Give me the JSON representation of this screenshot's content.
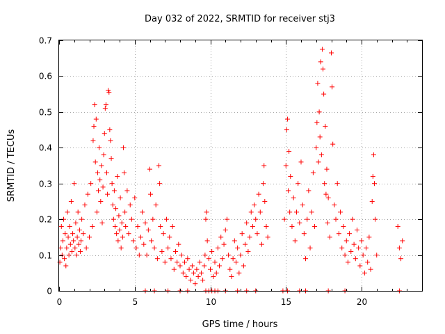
{
  "chart_data": {
    "type": "scatter",
    "title": "Day 032 of 2022, SRMTID for receiver stj3",
    "xlabel": "GPS time / hours",
    "ylabel": "SRMTID / TECUs",
    "xlim": [
      0,
      24
    ],
    "ylim": [
      0,
      0.7
    ],
    "x_ticks": [
      0,
      5,
      10,
      15,
      20
    ],
    "x_tick_labels": [
      "0",
      "5",
      "10",
      "15",
      "20"
    ],
    "y_ticks": [
      0,
      0.1,
      0.2,
      0.3,
      0.4,
      0.5,
      0.6,
      0.7
    ],
    "y_tick_labels": [
      "0",
      "0.1",
      "0.2",
      "0.3",
      "0.4",
      "0.5",
      "0.6",
      "0.7"
    ],
    "grid": true,
    "marker": "+",
    "color": "#ff0000",
    "series": [
      {
        "name": "SRMTID",
        "points": [
          [
            0.05,
            0.08
          ],
          [
            0.1,
            0.12
          ],
          [
            0.15,
            0.18
          ],
          [
            0.2,
            0.1
          ],
          [
            0.25,
            0.14
          ],
          [
            0.3,
            0.2
          ],
          [
            0.35,
            0.09
          ],
          [
            0.4,
            0.16
          ],
          [
            0.45,
            0.07
          ],
          [
            0.5,
            0.12
          ],
          [
            0.55,
            0.22
          ],
          [
            0.6,
            0.15
          ],
          [
            0.65,
            0.1
          ],
          [
            0.7,
            0.18
          ],
          [
            0.75,
            0.13
          ],
          [
            0.8,
            0.25
          ],
          [
            0.85,
            0.11
          ],
          [
            0.9,
            0.16
          ],
          [
            0.95,
            0.14
          ],
          [
            1.0,
            0.3
          ],
          [
            1.05,
            0.12
          ],
          [
            1.1,
            0.19
          ],
          [
            1.15,
            0.1
          ],
          [
            1.2,
            0.15
          ],
          [
            1.25,
            0.22
          ],
          [
            1.3,
            0.13
          ],
          [
            1.35,
            0.17
          ],
          [
            1.4,
            0.11
          ],
          [
            1.45,
            0.14
          ],
          [
            1.5,
            0.2
          ],
          [
            1.6,
            0.16
          ],
          [
            1.7,
            0.24
          ],
          [
            1.8,
            0.12
          ],
          [
            1.9,
            0.27
          ],
          [
            2.0,
            0.15
          ],
          [
            2.1,
            0.3
          ],
          [
            2.2,
            0.18
          ],
          [
            2.25,
            0.42
          ],
          [
            2.3,
            0.46
          ],
          [
            2.35,
            0.52
          ],
          [
            2.4,
            0.36
          ],
          [
            2.45,
            0.48
          ],
          [
            2.5,
            0.22
          ],
          [
            2.55,
            0.33
          ],
          [
            2.6,
            0.28
          ],
          [
            2.65,
            0.4
          ],
          [
            2.7,
            0.31
          ],
          [
            2.75,
            0.25
          ],
          [
            2.8,
            0.35
          ],
          [
            2.85,
            0.19
          ],
          [
            2.9,
            0.29
          ],
          [
            2.95,
            0.38
          ],
          [
            3.0,
            0.44
          ],
          [
            3.05,
            0.51
          ],
          [
            3.1,
            0.52
          ],
          [
            3.15,
            0.33
          ],
          [
            3.2,
            0.27
          ],
          [
            3.25,
            0.56
          ],
          [
            3.3,
            0.555
          ],
          [
            3.35,
            0.45
          ],
          [
            3.4,
            0.42
          ],
          [
            3.45,
            0.37
          ],
          [
            3.5,
            0.3
          ],
          [
            3.55,
            0.24
          ],
          [
            3.6,
            0.2
          ],
          [
            3.65,
            0.28
          ],
          [
            3.7,
            0.18
          ],
          [
            3.75,
            0.23
          ],
          [
            3.8,
            0.16
          ],
          [
            3.85,
            0.32
          ],
          [
            3.9,
            0.14
          ],
          [
            3.95,
            0.21
          ],
          [
            4.0,
            0.17
          ],
          [
            4.05,
            0.26
          ],
          [
            4.1,
            0.12
          ],
          [
            4.15,
            0.19
          ],
          [
            4.2,
            0.15
          ],
          [
            4.25,
            0.4
          ],
          [
            4.3,
            0.33
          ],
          [
            4.35,
            0.22
          ],
          [
            4.4,
            0.18
          ],
          [
            4.5,
            0.28
          ],
          [
            4.6,
            0.16
          ],
          [
            4.7,
            0.24
          ],
          [
            4.8,
            0.2
          ],
          [
            4.9,
            0.14
          ],
          [
            5.0,
            0.26
          ],
          [
            5.1,
            0.12
          ],
          [
            5.2,
            0.18
          ],
          [
            5.3,
            0.1
          ],
          [
            5.4,
            0.15
          ],
          [
            5.5,
            0.22
          ],
          [
            5.6,
            0.13
          ],
          [
            5.7,
            0.19
          ],
          [
            5.8,
            0.1
          ],
          [
            5.9,
            0.17
          ],
          [
            6.0,
            0.34
          ],
          [
            6.05,
            0.27
          ],
          [
            6.1,
            0.14
          ],
          [
            6.2,
            0.2
          ],
          [
            6.3,
            0.12
          ],
          [
            6.4,
            0.24
          ],
          [
            6.5,
            0.09
          ],
          [
            6.6,
            0.35
          ],
          [
            6.65,
            0.3
          ],
          [
            6.7,
            0.18
          ],
          [
            6.8,
            0.11
          ],
          [
            6.9,
            0.16
          ],
          [
            7.0,
            0.08
          ],
          [
            7.1,
            0.2
          ],
          [
            7.2,
            0.12
          ],
          [
            7.3,
            0.15
          ],
          [
            7.4,
            0.09
          ],
          [
            7.5,
            0.18
          ],
          [
            7.6,
            0.06
          ],
          [
            7.7,
            0.11
          ],
          [
            7.8,
            0.08
          ],
          [
            7.9,
            0.13
          ],
          [
            8.0,
            0.07
          ],
          [
            8.1,
            0.1
          ],
          [
            8.2,
            0.05
          ],
          [
            8.3,
            0.08
          ],
          [
            8.4,
            0.04
          ],
          [
            8.5,
            0.09
          ],
          [
            8.6,
            0.06
          ],
          [
            8.7,
            0.03
          ],
          [
            8.8,
            0.07
          ],
          [
            8.9,
            0.05
          ],
          [
            9.0,
            0.02
          ],
          [
            9.1,
            0.06
          ],
          [
            9.2,
            0.04
          ],
          [
            9.3,
            0.08
          ],
          [
            9.4,
            0.05
          ],
          [
            9.5,
            0.03
          ],
          [
            9.6,
            0.07
          ],
          [
            9.65,
            0.1
          ],
          [
            9.7,
            0.2
          ],
          [
            9.75,
            0.22
          ],
          [
            9.8,
            0.14
          ],
          [
            9.9,
            0.09
          ],
          [
            10.0,
            0.06
          ],
          [
            10.1,
            0.11
          ],
          [
            10.2,
            0.04
          ],
          [
            10.3,
            0.08
          ],
          [
            10.4,
            0.05
          ],
          [
            10.5,
            0.12
          ],
          [
            10.6,
            0.07
          ],
          [
            10.7,
            0.15
          ],
          [
            10.8,
            0.09
          ],
          [
            10.9,
            0.13
          ],
          [
            11.0,
            0.17
          ],
          [
            11.1,
            0.2
          ],
          [
            11.2,
            0.1
          ],
          [
            11.3,
            0.06
          ],
          [
            11.4,
            0.04
          ],
          [
            11.5,
            0.09
          ],
          [
            11.6,
            0.14
          ],
          [
            11.7,
            0.08
          ],
          [
            11.8,
            0.12
          ],
          [
            11.9,
            0.05
          ],
          [
            12.0,
            0.1
          ],
          [
            12.1,
            0.16
          ],
          [
            12.2,
            0.07
          ],
          [
            12.3,
            0.13
          ],
          [
            12.4,
            0.19
          ],
          [
            12.5,
            0.11
          ],
          [
            12.6,
            0.15
          ],
          [
            12.7,
            0.22
          ],
          [
            12.8,
            0.18
          ],
          [
            12.9,
            0.24
          ],
          [
            13.0,
            0.2
          ],
          [
            13.1,
            0.16
          ],
          [
            13.2,
            0.27
          ],
          [
            13.3,
            0.22
          ],
          [
            13.4,
            0.13
          ],
          [
            13.5,
            0.3
          ],
          [
            13.55,
            0.35
          ],
          [
            13.6,
            0.25
          ],
          [
            13.7,
            0.18
          ],
          [
            13.8,
            0.15
          ],
          [
            14.9,
            0.2
          ],
          [
            15.0,
            0.35
          ],
          [
            15.05,
            0.45
          ],
          [
            15.1,
            0.48
          ],
          [
            15.15,
            0.28
          ],
          [
            15.2,
            0.39
          ],
          [
            15.25,
            0.22
          ],
          [
            15.3,
            0.32
          ],
          [
            15.4,
            0.18
          ],
          [
            15.5,
            0.26
          ],
          [
            15.6,
            0.14
          ],
          [
            15.7,
            0.22
          ],
          [
            15.8,
            0.3
          ],
          [
            15.9,
            0.19
          ],
          [
            16.0,
            0.36
          ],
          [
            16.1,
            0.24
          ],
          [
            16.2,
            0.16
          ],
          [
            16.3,
            0.09
          ],
          [
            16.4,
            0.2
          ],
          [
            16.5,
            0.28
          ],
          [
            16.6,
            0.12
          ],
          [
            16.7,
            0.22
          ],
          [
            16.8,
            0.33
          ],
          [
            16.9,
            0.18
          ],
          [
            17.0,
            0.4
          ],
          [
            17.05,
            0.47
          ],
          [
            17.1,
            0.58
          ],
          [
            17.15,
            0.36
          ],
          [
            17.2,
            0.5
          ],
          [
            17.25,
            0.43
          ],
          [
            17.3,
            0.64
          ],
          [
            17.35,
            0.38
          ],
          [
            17.4,
            0.675
          ],
          [
            17.45,
            0.62
          ],
          [
            17.5,
            0.55
          ],
          [
            17.55,
            0.3
          ],
          [
            17.6,
            0.46
          ],
          [
            17.65,
            0.27
          ],
          [
            17.7,
            0.34
          ],
          [
            17.75,
            0.19
          ],
          [
            17.8,
            0.26
          ],
          [
            17.9,
            0.15
          ],
          [
            18.0,
            0.665
          ],
          [
            18.05,
            0.57
          ],
          [
            18.1,
            0.41
          ],
          [
            18.2,
            0.24
          ],
          [
            18.3,
            0.2
          ],
          [
            18.4,
            0.3
          ],
          [
            18.5,
            0.16
          ],
          [
            18.6,
            0.22
          ],
          [
            18.7,
            0.12
          ],
          [
            18.8,
            0.18
          ],
          [
            18.9,
            0.1
          ],
          [
            19.0,
            0.14
          ],
          [
            19.1,
            0.08
          ],
          [
            19.2,
            0.16
          ],
          [
            19.3,
            0.11
          ],
          [
            19.4,
            0.2
          ],
          [
            19.5,
            0.13
          ],
          [
            19.6,
            0.09
          ],
          [
            19.7,
            0.17
          ],
          [
            19.8,
            0.12
          ],
          [
            19.9,
            0.07
          ],
          [
            20.0,
            0.14
          ],
          [
            20.1,
            0.1
          ],
          [
            20.2,
            0.05
          ],
          [
            20.3,
            0.12
          ],
          [
            20.4,
            0.08
          ],
          [
            20.5,
            0.15
          ],
          [
            20.6,
            0.06
          ],
          [
            20.7,
            0.25
          ],
          [
            20.75,
            0.32
          ],
          [
            20.8,
            0.38
          ],
          [
            20.85,
            0.3
          ],
          [
            20.9,
            0.2
          ],
          [
            21.0,
            0.1
          ],
          [
            22.4,
            0.18
          ],
          [
            22.5,
            0.12
          ],
          [
            22.6,
            0.09
          ],
          [
            22.7,
            0.14
          ]
        ]
      }
    ],
    "zero_points_x": [
      5.7,
      6.3,
      7.2,
      8.0,
      8.5,
      9.7,
      9.9,
      10.1,
      10.3,
      10.5,
      11.0,
      11.8,
      12.4,
      13.0,
      14.8,
      15.1,
      15.9,
      16.3,
      17.8,
      18.9,
      22.5
    ]
  }
}
